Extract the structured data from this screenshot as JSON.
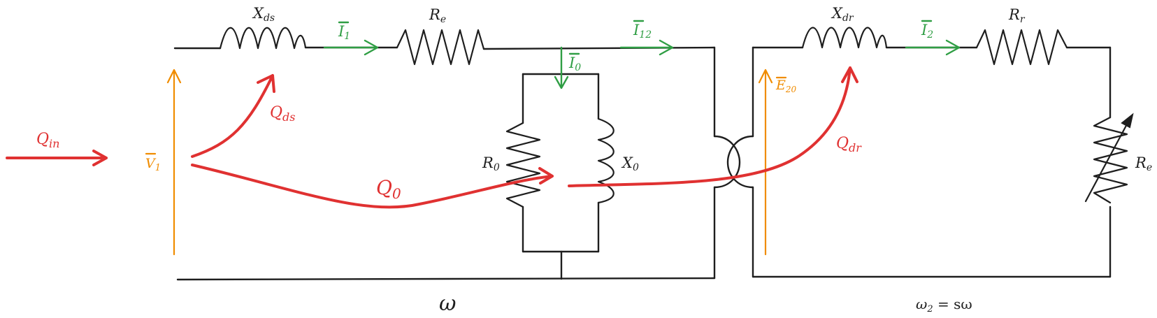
{
  "labels": {
    "xds": "X",
    "xds_sub": "ds",
    "re": "R",
    "re_sub": "e",
    "xdr": "X",
    "xdr_sub": "dr",
    "rr": "R",
    "rr_sub": "r",
    "re_load": "R",
    "re_load_sub": "e",
    "r0": "R",
    "r0_sub": "0",
    "x0": "X",
    "x0_sub": "0",
    "i1": "I",
    "i1_sub": "1",
    "i12": "I",
    "i12_sub": "12",
    "i0": "I",
    "i0_sub": "0",
    "i2": "I",
    "i2_sub": "2",
    "v1": "V",
    "v1_sub": "1",
    "e20": "E",
    "e20_sub": "20",
    "qin": "Q",
    "qin_sub": "in",
    "qds": "Q",
    "qds_sub": "ds",
    "q0": "Q",
    "q0_sub": "0",
    "qdr": "Q",
    "qdr_sub": "dr",
    "omega": "ω",
    "omega2": "ω",
    "omega2_sub": "2",
    "omega2_rhs": " = sω"
  },
  "colors": {
    "wire": "#1e1e1e",
    "current": "#2f9e44",
    "voltage": "#f08c00",
    "power": "#e03131"
  }
}
